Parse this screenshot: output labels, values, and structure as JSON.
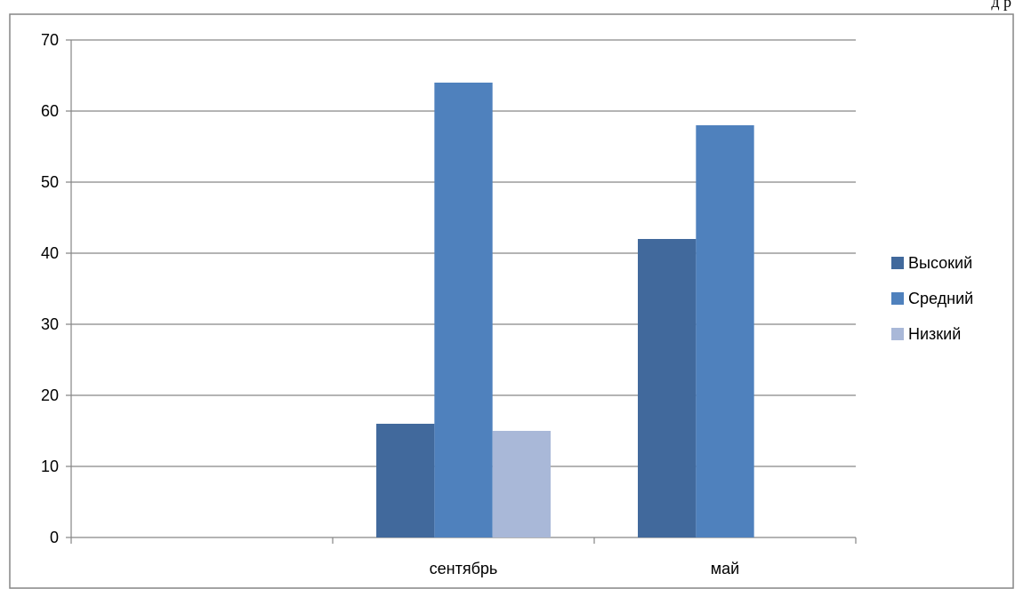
{
  "page": {
    "corner_text": "д   р"
  },
  "chart_data": {
    "type": "bar",
    "categories": [
      "",
      "сентябрь",
      "май"
    ],
    "series": [
      {
        "name": "Высокий",
        "values": [
          null,
          16,
          42
        ],
        "color": "#41699C"
      },
      {
        "name": "Средний",
        "values": [
          null,
          64,
          58
        ],
        "color": "#4F81BD"
      },
      {
        "name": "Низкий",
        "values": [
          null,
          15,
          null
        ],
        "color": "#A9B8D8"
      }
    ],
    "yticks": [
      "0",
      "10",
      "20",
      "30",
      "40",
      "50",
      "60",
      "70"
    ],
    "ylim": [
      0,
      70
    ],
    "grid": true,
    "legend": "right",
    "gridline_color": "#868686",
    "axis_color": "#868686",
    "frame_color": "#868686"
  }
}
